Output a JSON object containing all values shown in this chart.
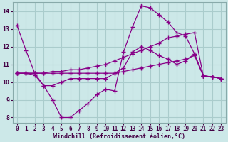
{
  "background_color": "#cce8e8",
  "grid_color": "#aacccc",
  "line_color": "#880088",
  "xlabel": "Windchill (Refroidissement éolien,°C)",
  "xlim_min": -0.5,
  "xlim_max": 23.5,
  "ylim_min": 7.7,
  "ylim_max": 14.5,
  "yticks": [
    8,
    9,
    10,
    11,
    12,
    13,
    14
  ],
  "xticks": [
    0,
    1,
    2,
    3,
    4,
    5,
    6,
    7,
    8,
    9,
    10,
    11,
    12,
    13,
    14,
    15,
    16,
    17,
    18,
    19,
    20,
    21,
    22,
    23
  ],
  "lines": [
    {
      "x": [
        0,
        1,
        2,
        3,
        4,
        5,
        6,
        7,
        8,
        9,
        10,
        11,
        12,
        13,
        14,
        15,
        16,
        17,
        18,
        19,
        20,
        21,
        22,
        23
      ],
      "y": [
        13.2,
        11.8,
        10.5,
        9.8,
        9.0,
        8.0,
        8.0,
        8.4,
        8.8,
        9.3,
        9.6,
        9.5,
        11.7,
        13.1,
        14.3,
        14.2,
        13.8,
        13.4,
        12.8,
        12.6,
        11.6,
        10.35,
        10.3,
        10.2
      ]
    },
    {
      "x": [
        0,
        1,
        2,
        3,
        4,
        5,
        6,
        7,
        8,
        9,
        10,
        11,
        12,
        13,
        14,
        15,
        16,
        17,
        18,
        19,
        20,
        21,
        22,
        23
      ],
      "y": [
        10.5,
        10.5,
        10.4,
        9.8,
        9.8,
        10.0,
        10.2,
        10.2,
        10.2,
        10.2,
        10.2,
        10.5,
        10.8,
        11.7,
        12.0,
        11.8,
        11.5,
        11.3,
        11.0,
        11.2,
        11.6,
        10.35,
        10.3,
        10.2
      ]
    },
    {
      "x": [
        0,
        1,
        2,
        3,
        4,
        5,
        6,
        7,
        8,
        9,
        10,
        11,
        12,
        13,
        14,
        15,
        16,
        17,
        18,
        19,
        20,
        21,
        22,
        23
      ],
      "y": [
        10.5,
        10.5,
        10.5,
        10.5,
        10.6,
        10.6,
        10.7,
        10.7,
        10.8,
        10.9,
        11.0,
        11.2,
        11.4,
        11.6,
        11.8,
        12.0,
        12.2,
        12.5,
        12.6,
        12.7,
        12.8,
        10.35,
        10.3,
        10.2
      ]
    },
    {
      "x": [
        0,
        1,
        2,
        3,
        4,
        5,
        6,
        7,
        8,
        9,
        10,
        11,
        12,
        13,
        14,
        15,
        16,
        17,
        18,
        19,
        20,
        21,
        22,
        23
      ],
      "y": [
        10.5,
        10.5,
        10.5,
        10.5,
        10.5,
        10.5,
        10.5,
        10.5,
        10.5,
        10.5,
        10.5,
        10.5,
        10.6,
        10.7,
        10.8,
        10.9,
        11.0,
        11.1,
        11.2,
        11.3,
        11.5,
        10.35,
        10.3,
        10.2
      ]
    }
  ]
}
